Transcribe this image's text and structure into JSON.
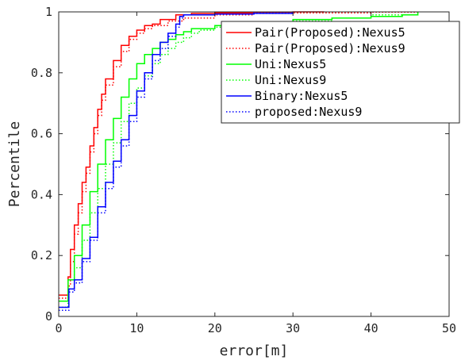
{
  "chart_data": {
    "type": "line",
    "title": "",
    "xlabel": "error[m]",
    "ylabel": "Percentile",
    "xlim": [
      0,
      50
    ],
    "ylim": [
      0,
      1
    ],
    "xticks": [
      "0",
      "10",
      "20",
      "30",
      "40",
      "50"
    ],
    "yticks": [
      "0",
      "0.2",
      "0.4",
      "0.6",
      "0.8",
      "1"
    ],
    "grid": false,
    "legend_position": "top-right",
    "series": [
      {
        "name": "Pair(Proposed):Nexus5",
        "color": "#ff0000",
        "dash": "solid",
        "x": [
          0,
          1.0,
          1.2,
          1.5,
          2.0,
          2.5,
          3.0,
          3.5,
          4.0,
          4.5,
          5.0,
          5.5,
          6.0,
          7.0,
          8.0,
          9.0,
          10.0,
          11.0,
          12.0,
          13.0,
          15.0,
          17.0,
          20.0,
          25.0,
          30.0,
          34.0
        ],
        "y": [
          0.07,
          0.07,
          0.13,
          0.22,
          0.3,
          0.37,
          0.44,
          0.49,
          0.56,
          0.62,
          0.68,
          0.73,
          0.78,
          0.84,
          0.89,
          0.92,
          0.94,
          0.955,
          0.96,
          0.975,
          0.99,
          0.995,
          0.997,
          0.999,
          1.0,
          1.0
        ]
      },
      {
        "name": "Pair(Proposed):Nexus9",
        "color": "#ff0000",
        "dash": "dotted",
        "x": [
          0,
          1.0,
          1.2,
          1.5,
          2.0,
          2.5,
          3.0,
          3.5,
          4.0,
          4.5,
          5.0,
          5.5,
          6.0,
          7.0,
          8.0,
          9.0,
          10.0,
          11.0,
          12.0,
          14.0,
          16.0,
          20.0,
          25.0,
          30.0,
          40.0,
          46.0
        ],
        "y": [
          0.06,
          0.06,
          0.1,
          0.18,
          0.27,
          0.34,
          0.41,
          0.47,
          0.54,
          0.6,
          0.66,
          0.71,
          0.76,
          0.82,
          0.87,
          0.91,
          0.93,
          0.945,
          0.955,
          0.97,
          0.98,
          0.99,
          0.995,
          0.997,
          0.999,
          1.0
        ]
      },
      {
        "name": "Uni:Nexus5",
        "color": "#00ff00",
        "dash": "solid",
        "x": [
          0,
          1.0,
          1.2,
          2.0,
          3.0,
          4.0,
          5.0,
          6.0,
          7.0,
          8.0,
          9.0,
          10.0,
          11.0,
          12.0,
          13.0,
          14.0,
          15.0,
          16.0,
          17.0,
          20.0,
          25.0,
          30.0,
          35.0,
          40.0,
          44.0,
          46.0
        ],
        "y": [
          0.05,
          0.05,
          0.12,
          0.2,
          0.3,
          0.41,
          0.5,
          0.58,
          0.65,
          0.72,
          0.78,
          0.83,
          0.86,
          0.88,
          0.9,
          0.91,
          0.925,
          0.935,
          0.945,
          0.955,
          0.965,
          0.975,
          0.98,
          0.985,
          0.99,
          1.0
        ]
      },
      {
        "name": "Uni:Nexus9",
        "color": "#00ff00",
        "dash": "dotted",
        "x": [
          0,
          1.0,
          1.2,
          2.0,
          3.0,
          4.0,
          5.0,
          6.0,
          7.0,
          8.0,
          9.0,
          10.0,
          11.0,
          12.0,
          13.0,
          14.0,
          15.0,
          16.0,
          17.0,
          18.0,
          20.0,
          25.0,
          30.0,
          35.0,
          40.0,
          46.0
        ],
        "y": [
          0.03,
          0.03,
          0.09,
          0.16,
          0.25,
          0.34,
          0.42,
          0.5,
          0.57,
          0.64,
          0.7,
          0.75,
          0.79,
          0.83,
          0.86,
          0.88,
          0.9,
          0.915,
          0.93,
          0.94,
          0.95,
          0.96,
          0.97,
          0.98,
          0.99,
          1.0
        ]
      },
      {
        "name": "Binary:Nexus5",
        "color": "#0000ff",
        "dash": "solid",
        "x": [
          0,
          1.2,
          1.3,
          2.0,
          3.0,
          4.0,
          5.0,
          6.0,
          7.0,
          8.0,
          9.0,
          10.0,
          11.0,
          12.0,
          13.0,
          14.0,
          15.0,
          15.5,
          16.0,
          20.0,
          25.0,
          30.0
        ],
        "y": [
          0.03,
          0.03,
          0.09,
          0.12,
          0.19,
          0.26,
          0.36,
          0.44,
          0.51,
          0.58,
          0.66,
          0.74,
          0.8,
          0.86,
          0.9,
          0.93,
          0.96,
          0.985,
          0.99,
          0.993,
          0.995,
          1.0
        ]
      },
      {
        "name": "proposed:Nexus9",
        "color": "#0000ff",
        "dash": "dotted",
        "x": [
          0,
          1.2,
          1.3,
          2.0,
          3.0,
          4.0,
          5.0,
          6.0,
          7.0,
          8.0,
          9.0,
          10.0,
          11.0,
          12.0,
          13.0,
          14.0,
          15.0,
          15.5,
          16.0,
          20.0,
          25.0,
          30.0
        ],
        "y": [
          0.02,
          0.02,
          0.08,
          0.11,
          0.18,
          0.25,
          0.34,
          0.42,
          0.49,
          0.56,
          0.64,
          0.72,
          0.78,
          0.84,
          0.88,
          0.92,
          0.95,
          0.98,
          0.99,
          0.993,
          0.996,
          1.0
        ]
      }
    ]
  }
}
